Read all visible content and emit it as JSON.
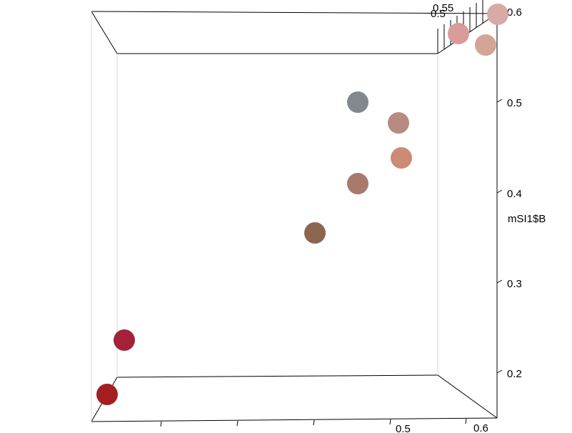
{
  "chart_data": {
    "type": "scatter",
    "title": "",
    "zlabel": "mSI1$B",
    "z_ticks": [
      "0.2",
      "0.3",
      "0.4",
      "0.5",
      "0.6"
    ],
    "x_ticks": [
      "0.5",
      "0.6"
    ],
    "y_ticks": [
      "0.5",
      "0.55"
    ],
    "zlim": [
      0.15,
      0.6
    ],
    "points": [
      {
        "z": 0.15,
        "color": "#a51e22"
      },
      {
        "z": 0.18,
        "color": "#a3223a"
      },
      {
        "z": 0.34,
        "color": "#8b6651"
      },
      {
        "z": 0.4,
        "color": "#a77a6c"
      },
      {
        "z": 0.44,
        "color": "#cc8b74"
      },
      {
        "z": 0.47,
        "color": "#b78b81"
      },
      {
        "z": 0.5,
        "color": "#838790"
      },
      {
        "z": 0.55,
        "color": "#d89c9b"
      },
      {
        "z": 0.57,
        "color": "#d4a495"
      },
      {
        "z": 0.6,
        "color": "#d9a9a6"
      }
    ]
  }
}
